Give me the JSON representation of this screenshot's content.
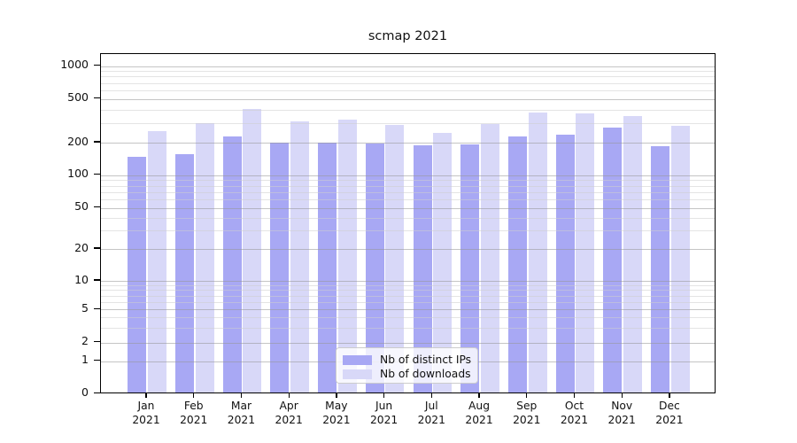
{
  "title": "scmap 2021",
  "chart_data": {
    "type": "bar",
    "title": "scmap 2021",
    "categories": [
      "Jan 2021",
      "Feb 2021",
      "Mar 2021",
      "Apr 2021",
      "May 2021",
      "Jun 2021",
      "Jul 2021",
      "Aug 2021",
      "Sep 2021",
      "Oct 2021",
      "Nov 2021",
      "Dec 2021"
    ],
    "series": [
      {
        "name": "Nb of distinct IPs",
        "color": "#a8a8f4",
        "values": [
          145,
          152,
          222,
          196,
          195,
          191,
          185,
          186,
          220,
          231,
          268,
          180
        ]
      },
      {
        "name": "Nb of downloads",
        "color": "#d8d8f8",
        "values": [
          248,
          292,
          395,
          301,
          317,
          284,
          240,
          285,
          362,
          356,
          338,
          275
        ]
      }
    ],
    "xlabel": "",
    "ylabel": "",
    "yscale": "symlog",
    "yticks": [
      0,
      1,
      2,
      5,
      10,
      20,
      50,
      100,
      200,
      500,
      1000
    ],
    "minor_gridlines": [
      3,
      4,
      6,
      7,
      8,
      9,
      30,
      40,
      60,
      70,
      80,
      90,
      300,
      400,
      600,
      700,
      800,
      900
    ],
    "ylim": [
      0,
      1200
    ],
    "grid": "on",
    "legend_position": "lower center"
  }
}
